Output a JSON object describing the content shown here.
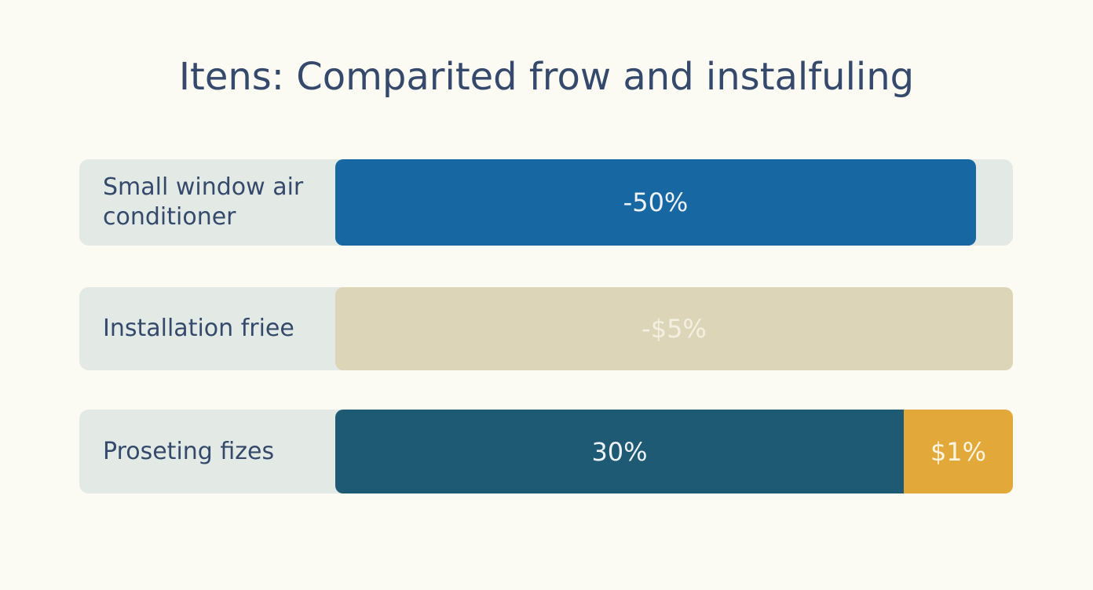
{
  "title": "Itens: Comparited frow and instalfuling",
  "rows": [
    {
      "label": "Small window air conditioner",
      "segments": [
        "-50%"
      ]
    },
    {
      "label": "Installation friee",
      "segments": [
        "-$5%"
      ]
    },
    {
      "label": "Proseting fizes",
      "segments": [
        "30%",
        "$1%"
      ]
    }
  ]
}
